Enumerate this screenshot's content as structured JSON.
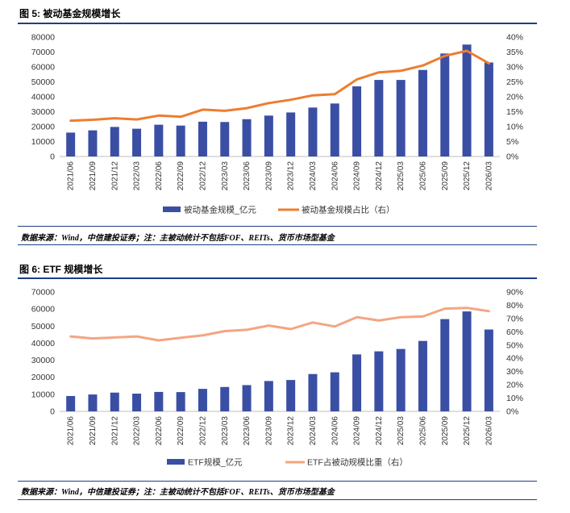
{
  "charts": [
    {
      "figure_title": "图 5: 被动基金规模增长",
      "source_note": "数据来源：Wind，中信建投证券；注：主被动统计不包括FOF、REITs、货币市场型基金"
    },
    {
      "figure_title": "图 6: ETF 规模增长",
      "source_note": "数据来源：Wind，中信建投证券；注：主被动统计不包括FOF、REITs、货币市场型基金"
    }
  ],
  "chart_data": [
    {
      "type": "bar",
      "categories": [
        "2021/06",
        "2021/09",
        "2021/12",
        "2022/03",
        "2022/06",
        "2022/09",
        "2022/12",
        "2023/03",
        "2023/06",
        "2023/09",
        "2023/12",
        "2024/03",
        "2024/06",
        "2024/09",
        "2024/12",
        "2025/03",
        "2025/06",
        "2025/09",
        "2025/12",
        "2026/03"
      ],
      "series": [
        {
          "name": "被动基金规模_亿元",
          "kind": "bar",
          "axis": "left",
          "color": "#3a4fa4",
          "values": [
            16000,
            17500,
            19800,
            18600,
            21300,
            20700,
            23300,
            23100,
            25000,
            27400,
            29500,
            32800,
            35500,
            47000,
            51300,
            51300,
            58000,
            69000,
            75000,
            63000
          ]
        },
        {
          "name": "被动基金规模占比（右）",
          "kind": "line",
          "axis": "right",
          "color": "#ed7d31",
          "values": [
            12.0,
            12.3,
            12.8,
            12.4,
            13.7,
            13.3,
            15.7,
            15.3,
            16.2,
            17.9,
            19.0,
            20.5,
            20.9,
            25.8,
            28.2,
            28.7,
            30.5,
            33.7,
            35.4,
            31.2
          ]
        }
      ],
      "y_left": {
        "ticks": [
          "0",
          "10000",
          "20000",
          "30000",
          "40000",
          "50000",
          "60000",
          "70000",
          "80000"
        ],
        "ylim": [
          0,
          80000
        ]
      },
      "y_right": {
        "ticks": [
          "0%",
          "5%",
          "10%",
          "15%",
          "20%",
          "25%",
          "30%",
          "35%",
          "40%"
        ],
        "ylim": [
          0,
          40
        ]
      },
      "legend": "bottom"
    },
    {
      "type": "bar",
      "categories": [
        "2021/06",
        "2021/09",
        "2021/12",
        "2022/03",
        "2022/06",
        "2022/09",
        "2022/12",
        "2023/03",
        "2023/06",
        "2023/09",
        "2023/12",
        "2024/03",
        "2024/06",
        "2024/09",
        "2024/12",
        "2025/03",
        "2025/06",
        "2025/09",
        "2025/12",
        "2026/03"
      ],
      "series": [
        {
          "name": "ETF规模_亿元",
          "kind": "bar",
          "axis": "left",
          "color": "#3a4fa4",
          "values": [
            9000,
            9900,
            11000,
            10400,
            11400,
            11300,
            13200,
            14300,
            15400,
            17800,
            18400,
            21900,
            22900,
            33400,
            35200,
            36600,
            41300,
            54100,
            58600,
            48000
          ]
        },
        {
          "name": "ETF占被动规模比重（右）",
          "kind": "line",
          "axis": "right",
          "color": "#f4a582",
          "values": [
            56.5,
            55.0,
            55.7,
            56.5,
            53.5,
            55.5,
            57.3,
            60.5,
            61.5,
            64.7,
            62.0,
            67.0,
            64.0,
            71.0,
            68.5,
            71.0,
            71.5,
            77.5,
            78.0,
            75.5
          ]
        }
      ],
      "y_left": {
        "ticks": [
          "0",
          "10000",
          "20000",
          "30000",
          "40000",
          "50000",
          "60000",
          "70000"
        ],
        "ylim": [
          0,
          70000
        ]
      },
      "y_right": {
        "ticks": [
          "0%",
          "10%",
          "20%",
          "30%",
          "40%",
          "50%",
          "60%",
          "70%",
          "80%",
          "90%"
        ],
        "ylim": [
          0,
          90
        ]
      },
      "legend": "bottom"
    }
  ]
}
